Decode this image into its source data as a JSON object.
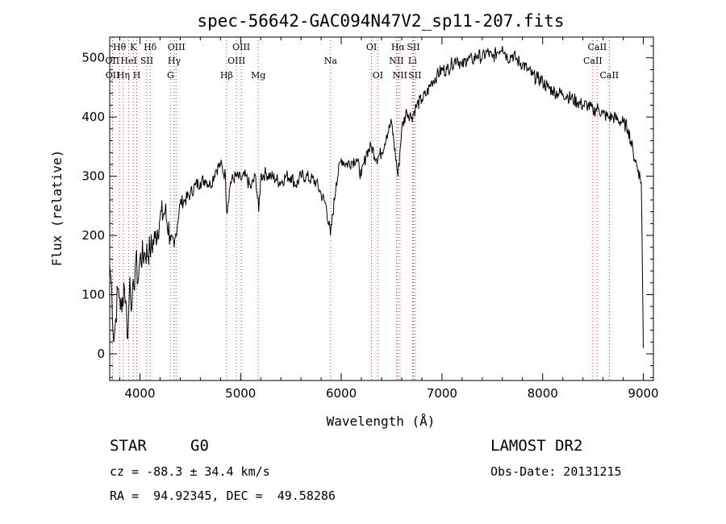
{
  "chart_data": {
    "type": "line",
    "title": "spec-56642-GAC094N47V2_sp11-207.fits",
    "xlabel": "Wavelength (Å)",
    "ylabel": "Flux (relative)",
    "xlim": [
      3700,
      9100
    ],
    "ylim": [
      -45,
      535
    ],
    "xticks": [
      4000,
      5000,
      6000,
      7000,
      8000,
      9000
    ],
    "yticks": [
      0,
      100,
      200,
      300,
      400,
      500
    ],
    "series": [
      {
        "x": [
          3700,
          3720,
          3740,
          3760,
          3780,
          3800,
          3820,
          3840,
          3860,
          3880,
          3900,
          3920,
          3940,
          3960,
          3980,
          4000,
          4050,
          4100,
          4150,
          4200,
          4250,
          4300,
          4340,
          4400,
          4450,
          4500,
          4550,
          4600,
          4650,
          4700,
          4750,
          4800,
          4850,
          4861,
          4900,
          4950,
          5000,
          5050,
          5100,
          5150,
          5180,
          5200,
          5250,
          5300,
          5350,
          5400,
          5450,
          5500,
          5550,
          5600,
          5650,
          5700,
          5750,
          5800,
          5850,
          5893,
          5950,
          6000,
          6050,
          6100,
          6150,
          6200,
          6250,
          6300,
          6350,
          6400,
          6450,
          6500,
          6563,
          6600,
          6650,
          6700,
          6750,
          6800,
          6850,
          6900,
          6950,
          7000,
          7050,
          7100,
          7150,
          7200,
          7250,
          7300,
          7350,
          7400,
          7450,
          7500,
          7550,
          7600,
          7650,
          7700,
          7750,
          7800,
          7850,
          7900,
          7950,
          8000,
          8050,
          8100,
          8150,
          8200,
          8250,
          8300,
          8350,
          8400,
          8450,
          8500,
          8550,
          8600,
          8650,
          8700,
          8750,
          8800,
          8850,
          8900,
          8950,
          8980,
          9000
        ],
        "y": [
          150,
          110,
          20,
          60,
          110,
          95,
          70,
          120,
          90,
          25,
          130,
          80,
          110,
          165,
          120,
          160,
          170,
          175,
          195,
          230,
          240,
          200,
          180,
          255,
          260,
          270,
          285,
          290,
          295,
          285,
          310,
          320,
          300,
          240,
          290,
          300,
          295,
          300,
          280,
          300,
          240,
          300,
          305,
          300,
          295,
          290,
          300,
          300,
          285,
          300,
          300,
          295,
          290,
          270,
          250,
          200,
          290,
          330,
          320,
          325,
          330,
          300,
          340,
          350,
          330,
          340,
          370,
          390,
          300,
          380,
          410,
          400,
          420,
          430,
          440,
          460,
          470,
          480,
          480,
          490,
          500,
          485,
          500,
          495,
          505,
          500,
          510,
          500,
          510,
          520,
          500,
          505,
          495,
          490,
          480,
          470,
          465,
          460,
          450,
          445,
          440,
          440,
          435,
          430,
          425,
          420,
          420,
          410,
          415,
          405,
          400,
          400,
          395,
          390,
          380,
          340,
          310,
          290,
          10
        ]
      }
    ],
    "lines": [
      {
        "wave": 3726,
        "label": "OII",
        "row": 1
      },
      {
        "wave": 3729,
        "label": "OII",
        "row": 2
      },
      {
        "wave": 3797,
        "label": "Hθ",
        "row": 0
      },
      {
        "wave": 3835,
        "label": "Hη",
        "row": 2
      },
      {
        "wave": 3889,
        "label": "HeI",
        "row": 1
      },
      {
        "wave": 3934,
        "label": "K",
        "row": 0
      },
      {
        "wave": 3969,
        "label": "H",
        "row": 2
      },
      {
        "wave": 4068,
        "label": "SII",
        "row": 1
      },
      {
        "wave": 4102,
        "label": "Hδ",
        "row": 0
      },
      {
        "wave": 4304,
        "label": "G",
        "row": 2
      },
      {
        "wave": 4341,
        "label": "Hγ",
        "row": 1
      },
      {
        "wave": 4363,
        "label": "OIII",
        "row": 0
      },
      {
        "wave": 4861,
        "label": "Hβ",
        "row": 2
      },
      {
        "wave": 4959,
        "label": "OIII",
        "row": 1
      },
      {
        "wave": 5007,
        "label": "OIII",
        "row": 0
      },
      {
        "wave": 5175,
        "label": "Mg",
        "row": 2
      },
      {
        "wave": 5894,
        "label": "Na",
        "row": 1
      },
      {
        "wave": 6300,
        "label": "OI",
        "row": 0
      },
      {
        "wave": 6363,
        "label": "OI",
        "row": 2
      },
      {
        "wave": 6548,
        "label": "NII",
        "row": 1
      },
      {
        "wave": 6563,
        "label": "Hα",
        "row": 0
      },
      {
        "wave": 6583,
        "label": "NII",
        "row": 2
      },
      {
        "wave": 6707,
        "label": "Li",
        "row": 1
      },
      {
        "wave": 6716,
        "label": "SII",
        "row": 0
      },
      {
        "wave": 6731,
        "label": "SII",
        "row": 2
      },
      {
        "wave": 8498,
        "label": "CaII",
        "row": 1
      },
      {
        "wave": 8542,
        "label": "CaII",
        "row": 0
      },
      {
        "wave": 8662,
        "label": "CaII",
        "row": 2
      }
    ],
    "grid": false,
    "legend": "none"
  },
  "info": {
    "class": "STAR",
    "subclass": "G0",
    "survey": "LAMOST DR2",
    "cz": "cz = -88.3 ± 34.4 km/s",
    "obs_date": "Obs-Date: 20131215",
    "coords": "RA =  94.92345, DEC =  49.58286"
  }
}
